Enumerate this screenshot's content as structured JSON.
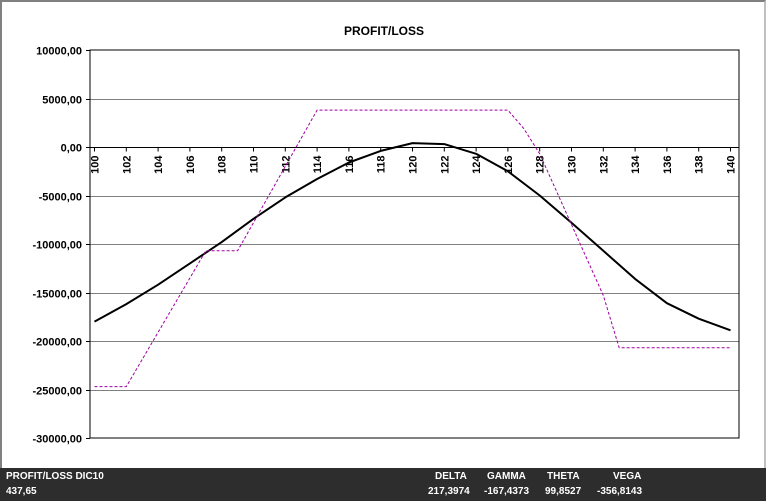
{
  "chart_data": {
    "type": "line",
    "title": "PROFIT/LOSS",
    "xlabel": "",
    "ylabel": "",
    "x": [
      100,
      102,
      104,
      106,
      108,
      110,
      112,
      114,
      116,
      118,
      120,
      122,
      124,
      126,
      128,
      130,
      132,
      134,
      136,
      138,
      140
    ],
    "x_tick_labels": [
      "100",
      "102",
      "104",
      "106",
      "108",
      "110",
      "112",
      "114",
      "116",
      "118",
      "120",
      "122",
      "124",
      "126",
      "128",
      "130",
      "132",
      "134",
      "136",
      "138",
      "140"
    ],
    "ylim": [
      -30000,
      10000
    ],
    "y_ticks": [
      10000,
      5000,
      0,
      -5000,
      -10000,
      -15000,
      -20000,
      -25000,
      -30000
    ],
    "y_tick_labels": [
      "10000,00",
      "5000,00",
      "0,00",
      "-5000,00",
      "-10000,00",
      "-15000,00",
      "-20000,00",
      "-25000,00",
      "-30000,00"
    ],
    "grid": "horizontal",
    "series": [
      {
        "style": "solid",
        "color": "#000000",
        "x": [
          100,
          102,
          104,
          106,
          108,
          110,
          112,
          114,
          116,
          118,
          120,
          122,
          124,
          126,
          128,
          130,
          132,
          134,
          136,
          138,
          140
        ],
        "values": [
          -18000,
          -16200,
          -14200,
          -12000,
          -9800,
          -7400,
          -5200,
          -3300,
          -1600,
          -400,
          400,
          300,
          -700,
          -2500,
          -5000,
          -7800,
          -10700,
          -13600,
          -16100,
          -17700,
          -18900
        ]
      },
      {
        "style": "dashed",
        "color": "#a000a0",
        "x": [
          100,
          102,
          107,
          109,
          114,
          126,
          127,
          128,
          132,
          133,
          140
        ],
        "values": [
          -24700,
          -24700,
          -10700,
          -10700,
          3800,
          3800,
          1900,
          -700,
          -15300,
          -20700,
          -20700
        ]
      }
    ]
  },
  "status_bar": {
    "name": "PROFIT/LOSS DIC10",
    "value": "437,65",
    "delta_label": "DELTA",
    "gamma_label": "GAMMA",
    "theta_label": "THETA",
    "vega_label": "VEGA",
    "delta_value": "217,3974",
    "gamma_value": "-167,4373",
    "theta_value": "99,8527",
    "vega_value": "-356,8143"
  }
}
